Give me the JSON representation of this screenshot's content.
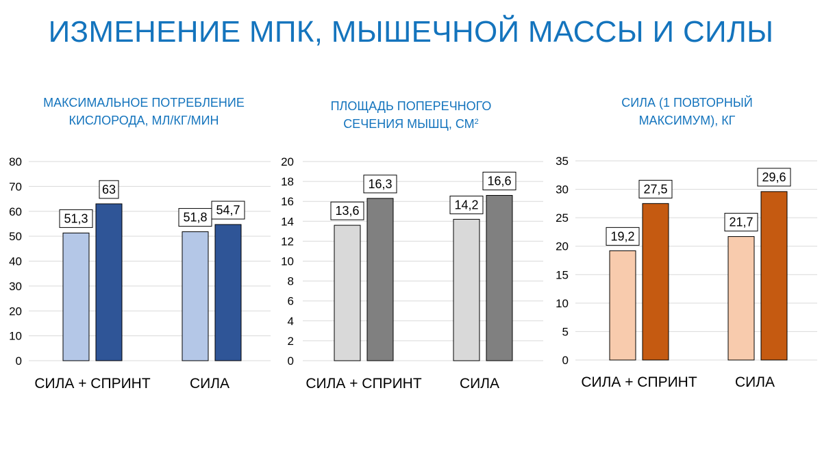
{
  "title": "ИЗМЕНЕНИЕ МПК, МЫШЕЧНОЙ МАССЫ И СИЛЫ",
  "chart_data": [
    {
      "type": "bar",
      "title_lines": [
        "МАКСИМАЛЬНОЕ ПОТРЕБЛЕНИЕ",
        "КИСЛОРОДА, МЛ/КГ/МИН"
      ],
      "title_sup": "",
      "categories": [
        "СИЛА + СПРИНТ",
        "СИЛА"
      ],
      "series": [
        {
          "values": [
            51.3,
            51.8
          ],
          "labels": [
            "51,3",
            "51,8"
          ],
          "color": "#b4c7e7"
        },
        {
          "values": [
            63,
            54.7
          ],
          "labels": [
            "63",
            "54,7"
          ],
          "color": "#2f5597"
        }
      ],
      "ylim": [
        0,
        80
      ],
      "yticks": [
        0,
        10,
        20,
        30,
        40,
        50,
        60,
        70,
        80
      ],
      "grid": true
    },
    {
      "type": "bar",
      "title_lines": [
        "ПЛОЩАДЬ ПОПЕРЕЧНОГО",
        "СЕЧЕНИЯ МЫШЦ, СМ"
      ],
      "title_sup": "2",
      "categories": [
        "СИЛА + СПРИНТ",
        "СИЛА"
      ],
      "series": [
        {
          "values": [
            13.6,
            14.2
          ],
          "labels": [
            "13,6",
            "14,2"
          ],
          "color": "#d9d9d9"
        },
        {
          "values": [
            16.3,
            16.6
          ],
          "labels": [
            "16,3",
            "16,6"
          ],
          "color": "#808080"
        }
      ],
      "ylim": [
        0,
        20
      ],
      "yticks": [
        0,
        2,
        4,
        6,
        8,
        10,
        12,
        14,
        16,
        18,
        20
      ],
      "grid": true
    },
    {
      "type": "bar",
      "title_lines": [
        "СИЛА (1 ПОВТОРНЫЙ",
        "МАКСИМУМ), КГ"
      ],
      "title_sup": "",
      "categories": [
        "СИЛА + СПРИНТ",
        "СИЛА"
      ],
      "series": [
        {
          "values": [
            19.2,
            21.7
          ],
          "labels": [
            "19,2",
            "21,7"
          ],
          "color": "#f8cbad"
        },
        {
          "values": [
            27.5,
            29.6
          ],
          "labels": [
            "27,5",
            "29,6"
          ],
          "color": "#c55a11"
        }
      ],
      "ylim": [
        0,
        35
      ],
      "yticks": [
        0,
        5,
        10,
        15,
        20,
        25,
        30,
        35
      ],
      "grid": true
    }
  ]
}
